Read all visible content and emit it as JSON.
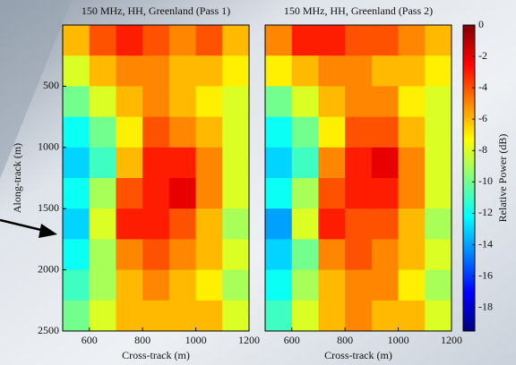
{
  "chart_data": [
    {
      "type": "heatmap",
      "title": "150 MHz, HH, Greenland (Pass 1)",
      "xlabel": "Cross-track (m)",
      "ylabel": "Along-track (m)",
      "x": [
        550,
        650,
        750,
        850,
        950,
        1050,
        1150
      ],
      "y": [
        125,
        375,
        625,
        875,
        1125,
        1375,
        1625,
        1875,
        2125,
        2375
      ],
      "values": [
        [
          -6,
          -4,
          -3,
          -4,
          -5,
          -4,
          -6
        ],
        [
          -8,
          -6,
          -5,
          -5,
          -6,
          -6,
          -7
        ],
        [
          -10,
          -8,
          -6,
          -5,
          -6,
          -7,
          -8
        ],
        [
          -12,
          -10,
          -7,
          -4,
          -5,
          -6,
          -8
        ],
        [
          -13,
          -11,
          -6,
          -3,
          -3,
          -5,
          -8
        ],
        [
          -12,
          -9,
          -4,
          -3,
          -2,
          -5,
          -8
        ],
        [
          -13,
          -8,
          -3,
          -3,
          -4,
          -6,
          -9
        ],
        [
          -12,
          -9,
          -5,
          -4,
          -5,
          -6,
          -8
        ],
        [
          -11,
          -9,
          -6,
          -5,
          -6,
          -7,
          -9
        ],
        [
          -10,
          -8,
          -6,
          -6,
          -6,
          -6,
          -8
        ]
      ],
      "xlim": [
        500,
        1200
      ],
      "ylim": [
        0,
        2500
      ],
      "xticks": [
        600,
        800,
        1000,
        1200
      ],
      "yticks": [
        500,
        1000,
        1500,
        2000,
        2500
      ]
    },
    {
      "type": "heatmap",
      "title": "150 MHz, HH, Greenland (Pass 2)",
      "xlabel": "Cross-track (m)",
      "x": [
        550,
        650,
        750,
        850,
        950,
        1050,
        1150
      ],
      "y": [
        125,
        375,
        625,
        875,
        1125,
        1375,
        1625,
        1875,
        2125,
        2375
      ],
      "values": [
        [
          -5,
          -3,
          -3,
          -4,
          -4,
          -5,
          -6
        ],
        [
          -7,
          -6,
          -5,
          -5,
          -6,
          -6,
          -7
        ],
        [
          -10,
          -8,
          -6,
          -5,
          -5,
          -7,
          -8
        ],
        [
          -12,
          -10,
          -7,
          -4,
          -4,
          -6,
          -8
        ],
        [
          -13,
          -11,
          -5,
          -3,
          -2,
          -5,
          -8
        ],
        [
          -12,
          -9,
          -4,
          -3,
          -3,
          -5,
          -8
        ],
        [
          -14,
          -8,
          -3,
          -4,
          -4,
          -6,
          -9
        ],
        [
          -13,
          -10,
          -5,
          -4,
          -5,
          -6,
          -8
        ],
        [
          -12,
          -9,
          -6,
          -5,
          -5,
          -7,
          -9
        ],
        [
          -11,
          -8,
          -6,
          -5,
          -6,
          -6,
          -8
        ]
      ],
      "xlim": [
        500,
        1200
      ],
      "ylim": [
        0,
        2500
      ],
      "xticks": [
        600,
        800,
        1000,
        1200
      ]
    }
  ],
  "colorbar": {
    "label": "Relative Power (dB)",
    "colormap": "jet",
    "clim": [
      -19.5,
      0
    ],
    "ticks": [
      0,
      -2,
      -4,
      -6,
      -8,
      -10,
      -12,
      -14,
      -16,
      -18
    ]
  }
}
